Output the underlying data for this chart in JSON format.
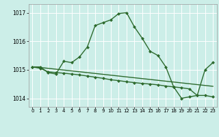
{
  "line1_y": [
    1015.1,
    1015.1,
    1014.9,
    1014.85,
    1015.3,
    1015.25,
    1015.45,
    1015.8,
    1016.55,
    1016.65,
    1016.75,
    1016.97,
    1017.0,
    1016.5,
    1016.1,
    1015.65,
    1015.5,
    1015.1,
    1014.4,
    1014.0,
    1014.05,
    1014.1,
    1015.0,
    1015.25
  ],
  "line2_y": [
    1015.1,
    1015.05,
    1014.93,
    1014.9,
    1014.88,
    1014.85,
    1014.82,
    1014.78,
    1014.74,
    1014.7,
    1014.65,
    1014.62,
    1014.58,
    1014.55,
    1014.52,
    1014.5,
    1014.47,
    1014.43,
    1014.4,
    1014.37,
    1014.33,
    1014.1,
    1014.1,
    1014.05
  ],
  "line3_y": [
    1015.1,
    1015.08,
    1015.05,
    1015.02,
    1014.99,
    1014.96,
    1014.93,
    1014.9,
    1014.87,
    1014.84,
    1014.81,
    1014.78,
    1014.75,
    1014.72,
    1014.69,
    1014.66,
    1014.63,
    1014.6,
    1014.57,
    1014.54,
    1014.51,
    1014.48,
    1014.45,
    1014.42
  ],
  "line_color": "#2d6a2d",
  "bg_color": "#cceee8",
  "grid_color": "#b0d8d0",
  "xlabel_color": "#1a4a1a",
  "xlabel_bg": "#44aa44",
  "ylim": [
    1013.7,
    1017.3
  ],
  "xlim": [
    -0.5,
    23.5
  ],
  "yticks": [
    1014,
    1015,
    1016,
    1017
  ],
  "xticks": [
    0,
    1,
    2,
    3,
    4,
    5,
    6,
    7,
    8,
    9,
    10,
    11,
    12,
    13,
    14,
    15,
    16,
    17,
    18,
    19,
    20,
    21,
    22,
    23
  ],
  "markersize": 2.5,
  "linewidth": 1.0
}
